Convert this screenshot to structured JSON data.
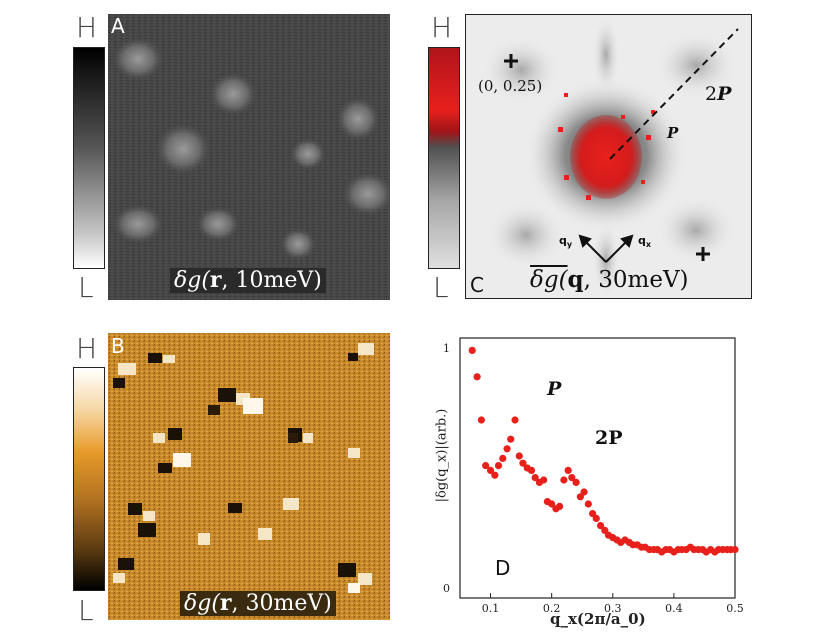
{
  "colorbar_labels": {
    "high": "H",
    "low": "L"
  },
  "panel_a": {
    "letter": "A",
    "caption_math": "δg(",
    "caption_bold": "r",
    "caption_rest": ", 10meV)"
  },
  "panel_b": {
    "letter": "B",
    "caption_math": "δg(",
    "caption_bold": "r",
    "caption_rest": ", 30meV)"
  },
  "panel_c": {
    "letter": "C",
    "caption_math": "δg(",
    "caption_bold": "q",
    "caption_rest": ", 30meV)",
    "coord_label": "(0, 0.25)",
    "label_2p_num": "2",
    "label_p": "P",
    "qy_label": "q",
    "qy_sub": "y",
    "qx_label": "q",
    "qx_sub": "x"
  },
  "panel_d": {
    "letter": "D",
    "peak_p_label": "P",
    "peak_2p_label": "2P",
    "chart_data": {
      "type": "scatter",
      "xlabel": "q_x(2π/a_0)",
      "ylabel": "|δg(q_x)|(arb.)",
      "xlim": [
        0.05,
        0.5
      ],
      "ylim": [
        0,
        1
      ],
      "x_ticks": [
        "0.1",
        "0.2",
        "0.3",
        "0.4",
        "0.5"
      ],
      "y_ticks": [
        "0",
        "1"
      ],
      "color": "#e8201c",
      "series": [
        {
          "x": [
            0.07,
            0.078,
            0.085,
            0.092,
            0.1,
            0.107,
            0.113,
            0.12,
            0.127,
            0.133,
            0.14,
            0.147,
            0.153,
            0.16,
            0.167,
            0.173,
            0.18,
            0.187,
            0.193,
            0.2,
            0.207,
            0.213,
            0.22,
            0.227,
            0.233,
            0.24,
            0.247,
            0.253,
            0.26,
            0.267,
            0.273,
            0.28,
            0.287,
            0.293,
            0.3,
            0.307,
            0.313,
            0.32,
            0.327,
            0.333,
            0.34,
            0.347,
            0.353,
            0.36,
            0.367,
            0.373,
            0.38,
            0.387,
            0.393,
            0.4,
            0.407,
            0.413,
            0.42,
            0.427,
            0.433,
            0.44,
            0.447,
            0.453,
            0.46,
            0.467,
            0.473,
            0.48,
            0.487,
            0.493,
            0.5
          ],
          "y": [
            0.99,
            0.88,
            0.7,
            0.51,
            0.49,
            0.47,
            0.51,
            0.54,
            0.58,
            0.62,
            0.7,
            0.55,
            0.52,
            0.5,
            0.49,
            0.46,
            0.44,
            0.45,
            0.36,
            0.35,
            0.33,
            0.34,
            0.45,
            0.49,
            0.46,
            0.44,
            0.38,
            0.4,
            0.35,
            0.31,
            0.29,
            0.26,
            0.24,
            0.22,
            0.21,
            0.2,
            0.19,
            0.2,
            0.19,
            0.18,
            0.18,
            0.17,
            0.17,
            0.16,
            0.16,
            0.16,
            0.15,
            0.16,
            0.16,
            0.15,
            0.16,
            0.16,
            0.16,
            0.17,
            0.16,
            0.16,
            0.16,
            0.15,
            0.16,
            0.15,
            0.16,
            0.16,
            0.16,
            0.16,
            0.16
          ]
        }
      ]
    }
  },
  "colors": {
    "accent_red": "#e8201c",
    "gold": "#d08a20",
    "frame": "#222222"
  }
}
